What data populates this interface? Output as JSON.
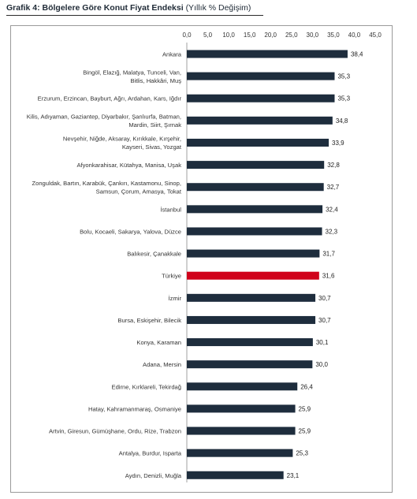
{
  "title": {
    "bold": "Grafik 4: Bölgelere Göre Konut Fiyat Endeksi",
    "normal": "(Yıllık % Değişim)"
  },
  "colors": {
    "bar": "#1e2d3d",
    "highlight": "#d0021b"
  },
  "chart_data": {
    "type": "bar",
    "orientation": "horizontal",
    "xlim": [
      0,
      45
    ],
    "ticks": [
      "0,0",
      "5,0",
      "10,0",
      "15,0",
      "20,0",
      "25,0",
      "30,0",
      "35,0",
      "40,0",
      "45,0"
    ],
    "tick_values": [
      0,
      5,
      10,
      15,
      20,
      25,
      30,
      35,
      40,
      45
    ],
    "axis_position": "top",
    "grid": false,
    "highlight_category": "Türkiye",
    "categories": [
      [
        "Ankara"
      ],
      [
        "Bingöl, Elazığ, Malatya, Tunceli, Van,",
        "Bitlis, Hakkâri, Muş"
      ],
      [
        "Erzurum, Erzincan, Bayburt, Ağrı, Ardahan, Kars, Iğdır"
      ],
      [
        "Kilis, Adıyaman, Gaziantep, Diyarbakır, Şanlıurfa, Batman,",
        "Mardin, Siirt, Şırnak"
      ],
      [
        "Nevşehir, Niğde, Aksaray, Kırıkkale, Kırşehir,",
        "Kayseri, Sivas, Yozgat"
      ],
      [
        "Afyonkarahisar, Kütahya, Manisa, Uşak"
      ],
      [
        "Zonguldak, Bartın, Karabük, Çankırı, Kastamonu, Sinop,",
        "Samsun, Çorum, Amasya, Tokat"
      ],
      [
        "İstanbul"
      ],
      [
        "Bolu, Kocaeli, Sakarya, Yalova, Düzce"
      ],
      [
        "Balıkesir, Çanakkale"
      ],
      [
        "Türkiye"
      ],
      [
        "İzmir"
      ],
      [
        "Bursa, Eskişehir, Bilecik"
      ],
      [
        "Konya, Karaman"
      ],
      [
        "Adana, Mersin"
      ],
      [
        "Edirne, Kırklareli, Tekirdağ"
      ],
      [
        "Hatay, Kahramanmaraş, Osmaniye"
      ],
      [
        "Artvin, Giresun, Gümüşhane, Ordu, Rize, Trabzon"
      ],
      [
        "Antalya, Burdur, Isparta"
      ],
      [
        "Aydın, Denizli, Muğla"
      ]
    ],
    "values": [
      38.4,
      35.3,
      35.3,
      34.8,
      33.9,
      32.8,
      32.7,
      32.4,
      32.3,
      31.7,
      31.6,
      30.7,
      30.7,
      30.1,
      30.0,
      26.4,
      25.9,
      25.9,
      25.3,
      23.1
    ],
    "value_labels": [
      "38,4",
      "35,3",
      "35,3",
      "34,8",
      "33,9",
      "32,8",
      "32,7",
      "32,4",
      "32,3",
      "31,7",
      "31,6",
      "30,7",
      "30,7",
      "30,1",
      "30,0",
      "26,4",
      "25,9",
      "25,9",
      "25,3",
      "23,1"
    ]
  }
}
